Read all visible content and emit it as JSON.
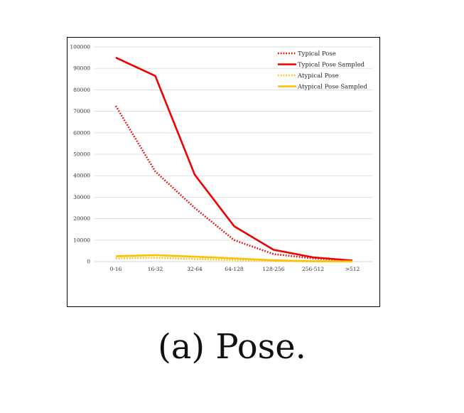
{
  "caption": "(a) Pose.",
  "chart_data": {
    "type": "line",
    "categories": [
      "0-16",
      "16-32",
      "32-64",
      "64-128",
      "128-256",
      "256-512",
      ">512"
    ],
    "ylim": [
      0,
      100000
    ],
    "yticks": [
      0,
      10000,
      20000,
      30000,
      40000,
      50000,
      60000,
      70000,
      80000,
      90000,
      100000
    ],
    "grid": true,
    "legend_position": "top-right",
    "series": [
      {
        "name": "Typical Pose",
        "color": "#ee0000",
        "style": "dotted",
        "values": [
          72500,
          42000,
          25000,
          10000,
          3500,
          1500,
          500
        ]
      },
      {
        "name": "Typical Pose Sampled",
        "color": "#ee0000",
        "style": "solid",
        "values": [
          95000,
          86500,
          40500,
          16500,
          5500,
          2000,
          500
        ]
      },
      {
        "name": "Atypical Pose",
        "color": "#ffc000",
        "style": "dotted",
        "values": [
          1500,
          1800,
          1200,
          700,
          300,
          100,
          50
        ]
      },
      {
        "name": "Atypical Pose Sampled",
        "color": "#ffc000",
        "style": "solid",
        "values": [
          2500,
          3000,
          2300,
          1500,
          600,
          200,
          100
        ]
      }
    ]
  }
}
